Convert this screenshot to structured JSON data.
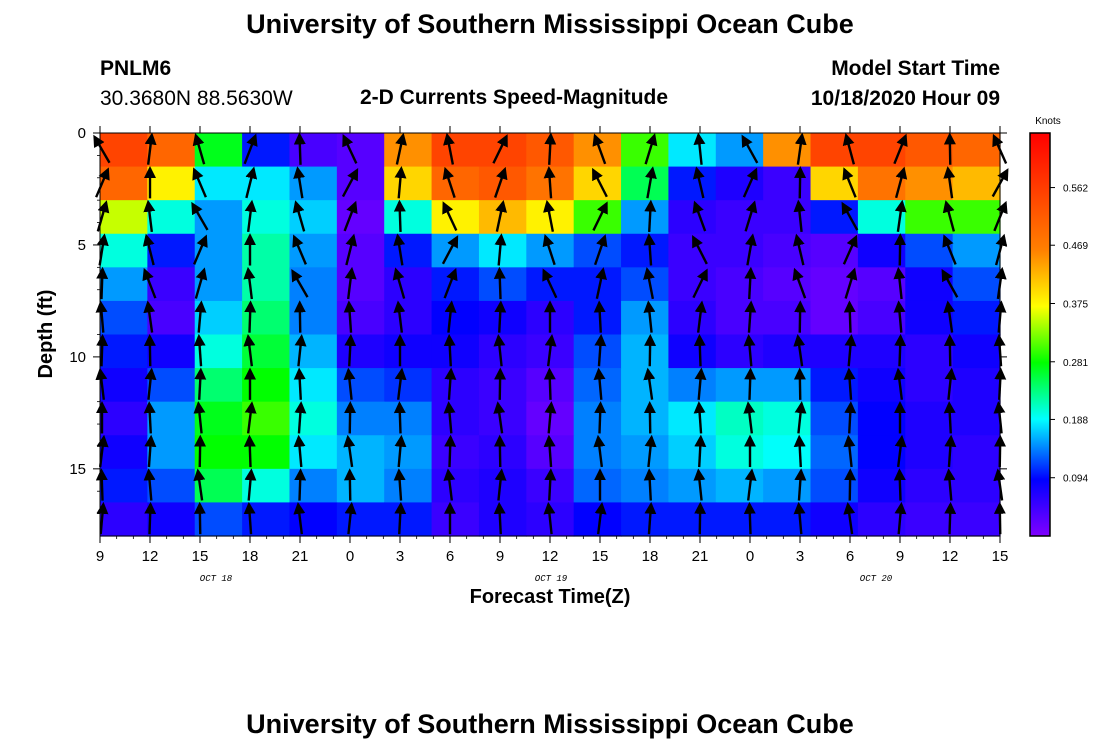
{
  "header": {
    "title": "University of Southern Mississippi Ocean Cube",
    "station": "PNLM6",
    "coords": "30.3680N 88.5630W",
    "subtitle": "2-D Currents Speed-Magnitude",
    "model_start_label": "Model Start Time",
    "model_start_value": "10/18/2020 Hour 09"
  },
  "footer": {
    "title": "University of Southern Mississippi Ocean Cube"
  },
  "chart_data": {
    "type": "heatmap",
    "xlabel": "Forecast Time(Z)",
    "ylabel": "Depth (ft)",
    "x_ticks": [
      "9",
      "12",
      "15",
      "18",
      "21",
      "0",
      "3",
      "6",
      "9",
      "12",
      "15",
      "18",
      "21",
      "0",
      "3",
      "6",
      "9",
      "12",
      "15"
    ],
    "date_labels": [
      "OCT 18",
      "OCT 19",
      "OCT 20"
    ],
    "y_ticks": [
      0,
      5,
      10,
      15
    ],
    "ylim": [
      0,
      18
    ],
    "xlim_hours": [
      0,
      54
    ],
    "colorbar": {
      "unit": "Knots",
      "ticks": [
        "0.094",
        "0.188",
        "0.281",
        "0.375",
        "0.469",
        "0.562"
      ],
      "range": [
        0,
        0.65
      ]
    },
    "depth_levels": [
      0.75,
      2.25,
      3.75,
      5.25,
      6.75,
      8.25,
      9.75,
      11.25,
      12.75,
      14.25,
      15.75,
      17.25
    ],
    "time_hours": [
      0,
      3,
      6,
      9,
      12,
      15,
      18,
      21,
      24,
      27,
      30,
      33,
      36,
      39,
      42,
      45,
      48,
      51,
      54
    ],
    "speed_grid": [
      [
        0.55,
        0.5,
        0.27,
        0.1,
        0.04,
        0.03,
        0.45,
        0.55,
        0.55,
        0.52,
        0.45,
        0.3,
        0.18,
        0.15,
        0.45,
        0.55,
        0.55,
        0.52,
        0.5
      ],
      [
        0.5,
        0.38,
        0.18,
        0.18,
        0.15,
        0.03,
        0.4,
        0.5,
        0.52,
        0.48,
        0.4,
        0.25,
        0.1,
        0.07,
        0.05,
        0.4,
        0.48,
        0.45,
        0.42
      ],
      [
        0.35,
        0.2,
        0.15,
        0.2,
        0.17,
        0.02,
        0.2,
        0.38,
        0.42,
        0.38,
        0.3,
        0.15,
        0.06,
        0.05,
        0.05,
        0.1,
        0.2,
        0.3,
        0.3
      ],
      [
        0.2,
        0.1,
        0.15,
        0.22,
        0.15,
        0.03,
        0.1,
        0.15,
        0.18,
        0.15,
        0.12,
        0.1,
        0.05,
        0.05,
        0.04,
        0.03,
        0.08,
        0.12,
        0.15
      ],
      [
        0.15,
        0.05,
        0.15,
        0.22,
        0.14,
        0.03,
        0.06,
        0.1,
        0.12,
        0.1,
        0.1,
        0.12,
        0.05,
        0.04,
        0.03,
        0.02,
        0.03,
        0.08,
        0.12
      ],
      [
        0.12,
        0.04,
        0.17,
        0.24,
        0.14,
        0.04,
        0.06,
        0.09,
        0.08,
        0.06,
        0.1,
        0.15,
        0.06,
        0.04,
        0.04,
        0.02,
        0.04,
        0.08,
        0.1
      ],
      [
        0.1,
        0.08,
        0.2,
        0.26,
        0.16,
        0.07,
        0.08,
        0.08,
        0.06,
        0.05,
        0.12,
        0.16,
        0.08,
        0.06,
        0.07,
        0.07,
        0.07,
        0.06,
        0.08
      ],
      [
        0.08,
        0.12,
        0.24,
        0.28,
        0.18,
        0.12,
        0.11,
        0.06,
        0.05,
        0.03,
        0.13,
        0.16,
        0.14,
        0.15,
        0.15,
        0.1,
        0.08,
        0.06,
        0.07
      ],
      [
        0.06,
        0.15,
        0.27,
        0.3,
        0.2,
        0.14,
        0.14,
        0.06,
        0.05,
        0.02,
        0.14,
        0.16,
        0.18,
        0.21,
        0.2,
        0.12,
        0.09,
        0.07,
        0.07
      ],
      [
        0.08,
        0.15,
        0.28,
        0.28,
        0.18,
        0.16,
        0.15,
        0.05,
        0.06,
        0.03,
        0.14,
        0.15,
        0.17,
        0.2,
        0.19,
        0.13,
        0.09,
        0.07,
        0.06
      ],
      [
        0.1,
        0.12,
        0.25,
        0.2,
        0.14,
        0.16,
        0.14,
        0.06,
        0.07,
        0.05,
        0.13,
        0.14,
        0.15,
        0.16,
        0.15,
        0.12,
        0.08,
        0.06,
        0.06
      ],
      [
        0.06,
        0.08,
        0.12,
        0.1,
        0.09,
        0.1,
        0.1,
        0.05,
        0.07,
        0.06,
        0.09,
        0.1,
        0.1,
        0.1,
        0.1,
        0.08,
        0.06,
        0.05,
        0.05
      ]
    ]
  }
}
